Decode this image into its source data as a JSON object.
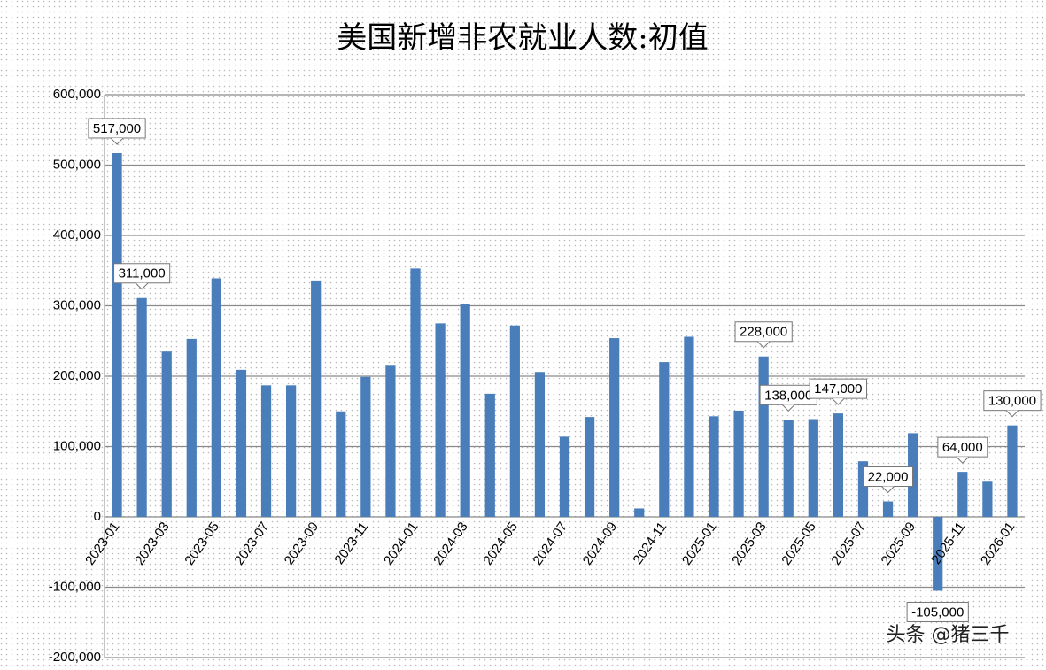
{
  "chart_data": {
    "type": "bar",
    "title": "美国新增非农就业人数:初值",
    "watermark": "头条 @猪三千",
    "categories": [
      "2023-01",
      null,
      "2023-03",
      null,
      "2023-05",
      null,
      "2023-07",
      null,
      "2023-09",
      null,
      "2023-11",
      null,
      "2024-01",
      null,
      "2024-03",
      null,
      "2024-05",
      null,
      "2024-07",
      null,
      "2024-09",
      null,
      "2024-11",
      null,
      "2025-01",
      null,
      "2025-03",
      null,
      "2025-05",
      null,
      "2025-07",
      null,
      "2025-09",
      null,
      "2025-11",
      null,
      "2026-01"
    ],
    "values": [
      517000,
      311000,
      235000,
      253000,
      339000,
      209000,
      187000,
      187000,
      336000,
      150000,
      199000,
      216000,
      353000,
      275000,
      303000,
      175000,
      272000,
      206000,
      114000,
      142000,
      254000,
      12000,
      220000,
      256000,
      143000,
      151000,
      228000,
      138000,
      139000,
      147000,
      79000,
      22000,
      119000,
      -105000,
      64000,
      50000,
      130000
    ],
    "value_labels": [
      "517,000",
      "311,000",
      null,
      null,
      null,
      null,
      null,
      null,
      null,
      null,
      null,
      null,
      null,
      null,
      null,
      null,
      null,
      null,
      null,
      null,
      null,
      null,
      null,
      null,
      null,
      null,
      "228,000",
      "138,000",
      null,
      "147,000",
      null,
      "22,000",
      null,
      "-105,000",
      "64,000",
      null,
      "130,000"
    ],
    "color": "#4a7ebb",
    "ylim": [
      -200000,
      600000
    ],
    "yticks": [
      {
        "value": -200000,
        "label": "-200,000"
      },
      {
        "value": -100000,
        "label": "-100,000"
      },
      0,
      {
        "value": 100000,
        "label": "100,000"
      },
      {
        "value": 200000,
        "label": "200,000"
      },
      {
        "value": 300000,
        "label": "300,000"
      },
      {
        "value": 400000,
        "label": "400,000"
      },
      {
        "value": 500000,
        "label": "500,000"
      },
      {
        "value": 600000,
        "label": "600,000"
      }
    ],
    "grid": true
  }
}
